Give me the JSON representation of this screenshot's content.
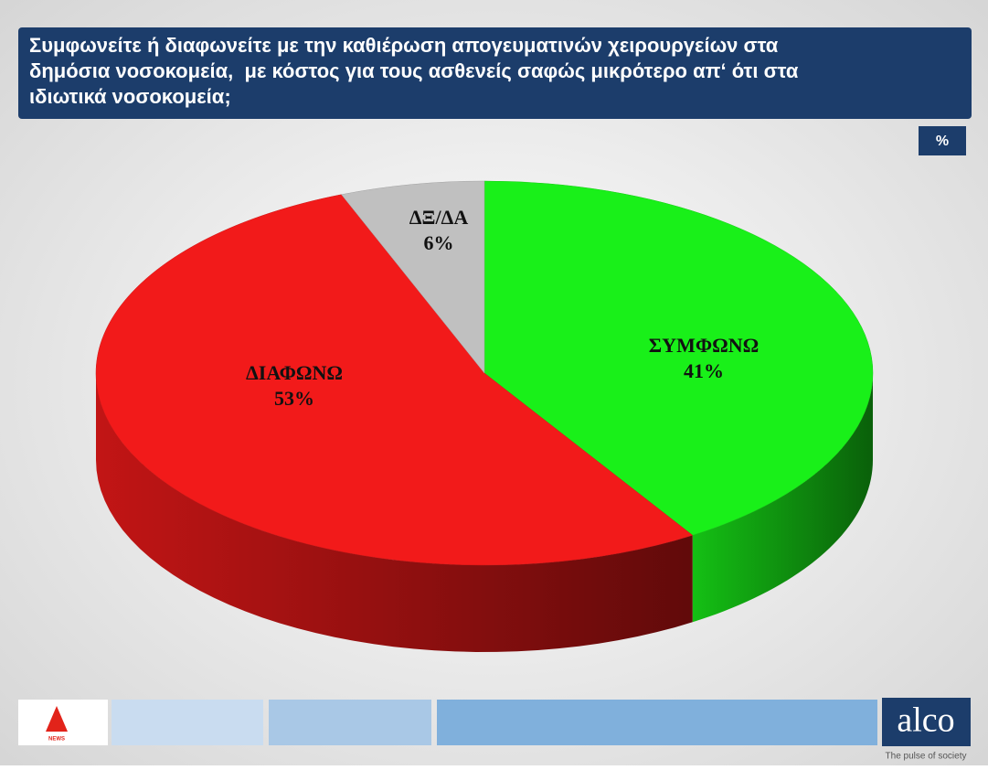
{
  "chart_data": {
    "type": "pie",
    "title": [
      "Συμφωνείτε ή διαφωνείτε με την καθιέρωση απογευματινών χειρουργείων στα",
      "δημόσια νοσοκομεία,  με κόστος για τους ασθενείς σαφώς μικρότερο απ‘ ότι στα",
      "ιδιωτικά νοσοκομεία;"
    ],
    "unit": "%",
    "categories": [
      "ΣΥΜΦΩΝΩ",
      "ΔΙΑΦΩΝΩ",
      "ΔΞ/ΔΑ"
    ],
    "values": [
      41,
      53,
      6
    ],
    "value_labels": [
      "41%",
      "53%",
      "6%"
    ],
    "colors": [
      "#19f019",
      "#f21a1a",
      "#c0c0c0"
    ]
  },
  "footer": {
    "logo_text": "NEWS",
    "brand": "alco",
    "tagline": "The pulse of society"
  }
}
